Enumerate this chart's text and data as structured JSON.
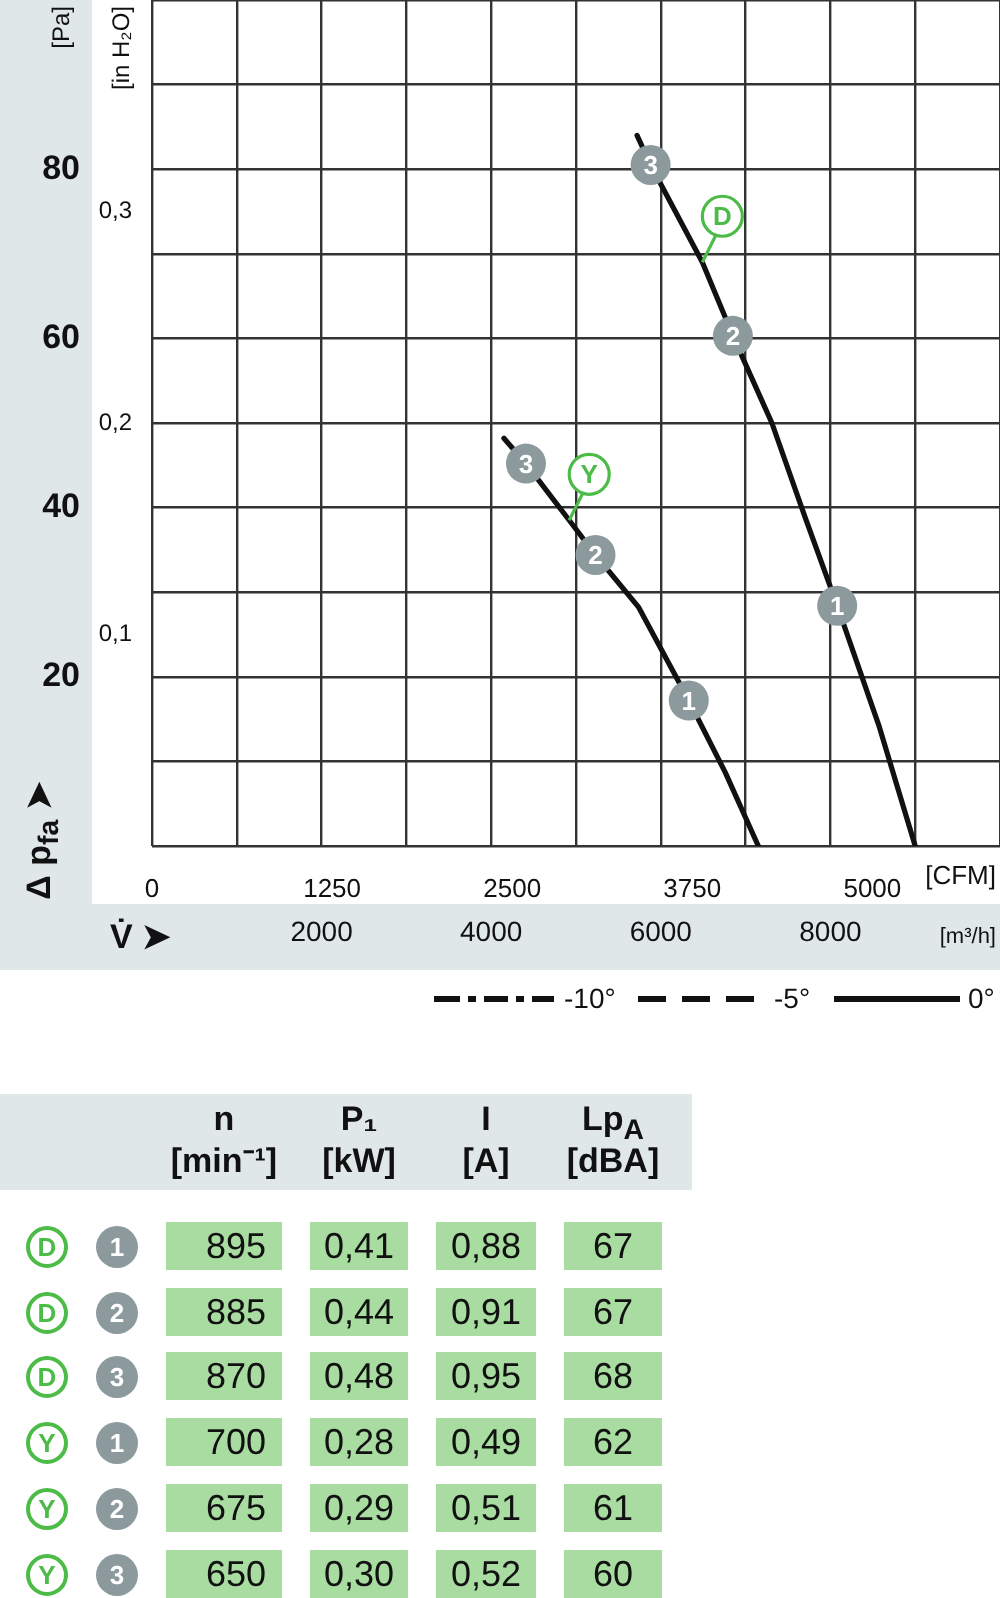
{
  "chart_data": [
    {
      "type": "line",
      "xlabel": "[m³/h]",
      "x2label": "[CFM]",
      "ylabel": "[Pa]",
      "y2label": "[in H₂O]",
      "xlim": [
        0,
        10000
      ],
      "xticks": [
        {
          "value": 0,
          "label": null
        },
        {
          "value": 1000,
          "label": null
        },
        2000,
        {
          "value": 3000,
          "label": null
        },
        4000,
        {
          "value": 5000,
          "label": null
        },
        6000,
        {
          "value": 7000,
          "label": null
        },
        8000,
        {
          "value": 9000,
          "label": null
        },
        {
          "value": 10000,
          "label": null
        }
      ],
      "x2lim": [
        0,
        5886
      ],
      "x2ticks": [
        0,
        1250,
        2500,
        3750,
        5000
      ],
      "ylim": [
        0,
        100
      ],
      "yticks": [
        {
          "value": 0,
          "label": null
        },
        {
          "value": 10,
          "label": null
        },
        20,
        {
          "value": 30,
          "label": null
        },
        40,
        {
          "value": 50,
          "label": null
        },
        60,
        {
          "value": 70,
          "label": null
        },
        80,
        {
          "value": 90,
          "label": null
        },
        {
          "value": 100,
          "label": null
        }
      ],
      "y2lim": [
        0,
        0.4
      ],
      "y2ticks": [
        {
          "value": 0.1,
          "label": "0,1"
        },
        {
          "value": 0.2,
          "label": "0,2"
        },
        {
          "value": 0.3,
          "label": "0,3"
        }
      ],
      "grid": true,
      "legend": false,
      "marker": "none",
      "line_style": "solid",
      "series": [
        {
          "name": "D",
          "color": "#111111",
          "x": [
            5720,
            5880,
            6490,
            6850,
            7310,
            7700,
            8080,
            8570,
            9000
          ],
          "values": [
            84,
            80.5,
            69,
            60.3,
            50,
            38.9,
            28.4,
            14.3,
            0
          ]
        },
        {
          "name": "Y",
          "color": "#111111",
          "x": [
            4150,
            4410,
            4920,
            5230,
            5740,
            6330,
            6760,
            7150
          ],
          "values": [
            48.2,
            45.2,
            38.5,
            34.4,
            28.2,
            17.2,
            8.7,
            0
          ]
        }
      ],
      "annotations": [
        {
          "text": "3",
          "x": 5880,
          "y": 80.5
        },
        {
          "text": "2",
          "x": 6850,
          "y": 60.3
        },
        {
          "text": "1",
          "x": 8080,
          "y": 28.4
        },
        {
          "text": "3",
          "x": 4410,
          "y": 45.2
        },
        {
          "text": "2",
          "x": 5230,
          "y": 34.4
        },
        {
          "text": "1",
          "x": 6330,
          "y": 17.2
        },
        "V̇ ➤",
        "Δ p$_{fa}$ ➤",
        "-10°",
        "-5°",
        "0°"
      ]
    },
    {
      "type": "other",
      "categories": [
        "n [min⁻¹]",
        "P₁ [kW]",
        "I [A]",
        "Lp$_{A}$ [dBA]"
      ],
      "y_categories": [
        "D 1",
        "D 2",
        "D 3",
        "Y 1",
        "Y 2",
        "Y 3"
      ],
      "cell_labels": [
        [
          "895",
          "0,41",
          "0,88",
          "67"
        ],
        [
          "885",
          "0,44",
          "0,91",
          "67"
        ],
        [
          "870",
          "0,48",
          "0,95",
          "68"
        ],
        [
          "700",
          "0,28",
          "0,49",
          "62"
        ],
        [
          "675",
          "0,29",
          "0,51",
          "61"
        ],
        [
          "650",
          "0,30",
          "0,52",
          "60"
        ]
      ]
    }
  ]
}
